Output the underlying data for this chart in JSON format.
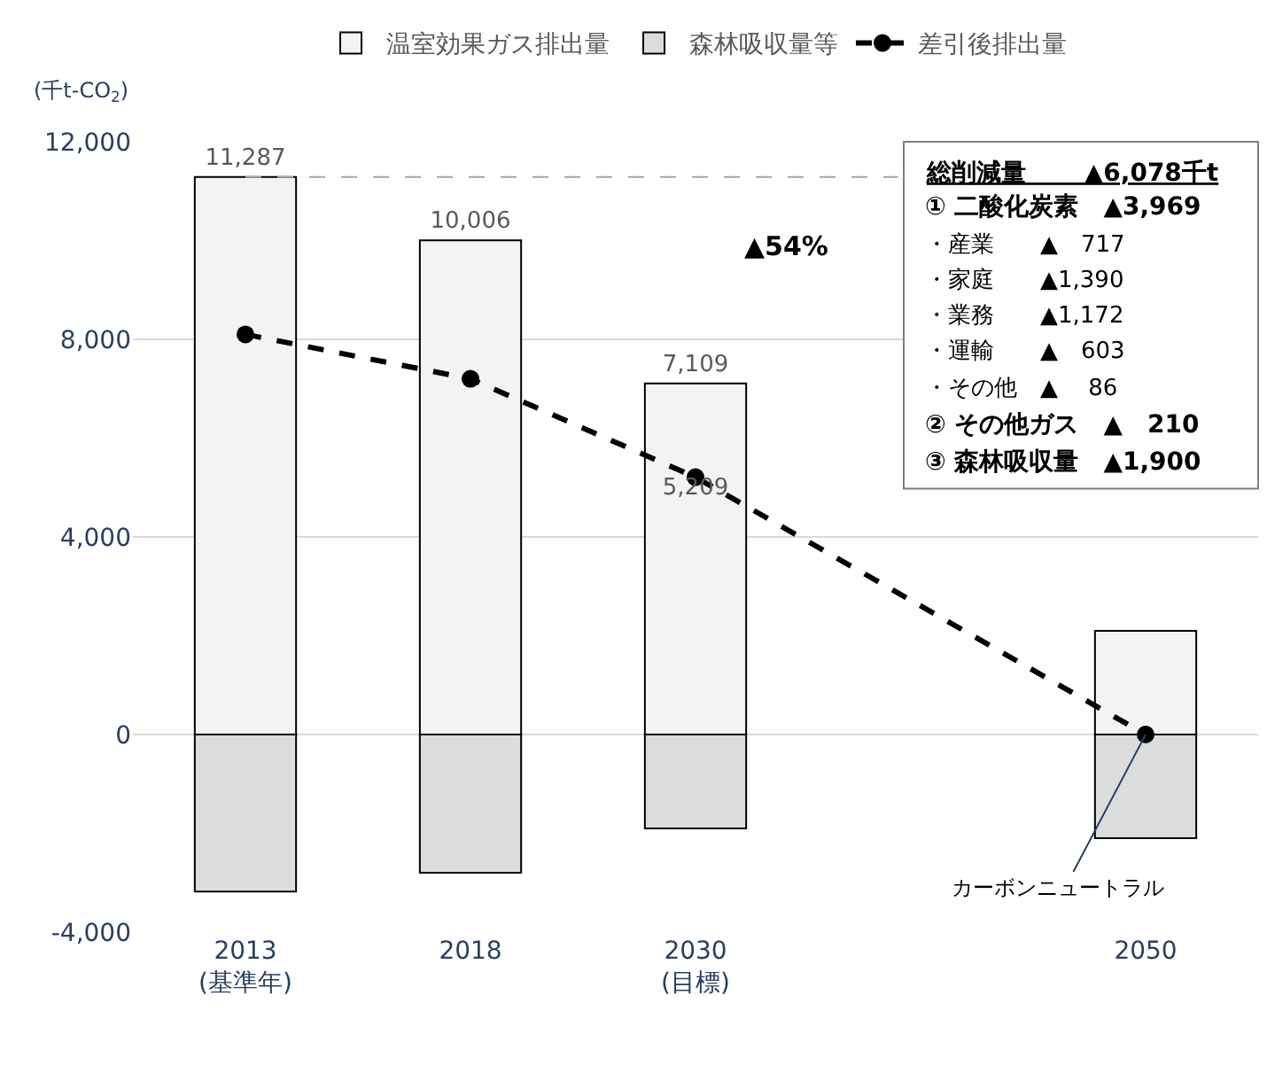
{
  "chart_data": {
    "type": "bar",
    "stacked": true,
    "ylabel": "(千t-CO$_{2}$)",
    "categories": [
      "2013\n(基準年)",
      "2018",
      "2030\n(目標)",
      null,
      "2050"
    ],
    "series": [
      {
        "name": "温室効果ガス排出量",
        "color": "#f3f3f3",
        "values": [
          11287,
          10006,
          7109,
          null,
          2100
        ],
        "value_labels": [
          "11,287",
          "10,006",
          "7,109",
          null,
          null
        ]
      },
      {
        "name": "森林吸収量等",
        "color": "#dcdcdc",
        "values": [
          -3180,
          -2800,
          -1900,
          null,
          -2100
        ]
      },
      {
        "name": "差引後排出量",
        "type": "line",
        "color": "#000000",
        "line_style": "dashed",
        "marker": "circle",
        "values": [
          8100,
          7200,
          5209,
          null,
          0
        ],
        "value_labels": [
          null,
          null,
          "5,209",
          null,
          null
        ]
      }
    ],
    "ylim": [
      -4000,
      12000
    ],
    "yticks": [
      {
        "value": -4000,
        "label": "-4,000"
      },
      0,
      {
        "value": 4000,
        "label": "4,000"
      },
      {
        "value": 8000,
        "label": "8,000"
      },
      {
        "value": 12000,
        "label": "12,000"
      }
    ],
    "grid": "y",
    "legend": "top",
    "ref_lines": [
      {
        "axis": "y",
        "value": 11287,
        "color": "#a6a6a6",
        "line_style": "dashed"
      }
    ],
    "annotations": [
      "▲54%",
      "総削減量　　 ▲6,078千t",
      "① 二酸化炭素　▲3,969",
      "・産業　　▲　717",
      "・家庭　　▲1,390",
      "・業務　　▲1,172",
      "・運輸　　▲　603",
      "・その他　▲　 86",
      "② その他ガス　▲　210",
      "③ 森林吸収量　▲1,900",
      {
        "text": "カーボンニュートラル",
        "x": "2050",
        "y": 0
      }
    ]
  }
}
